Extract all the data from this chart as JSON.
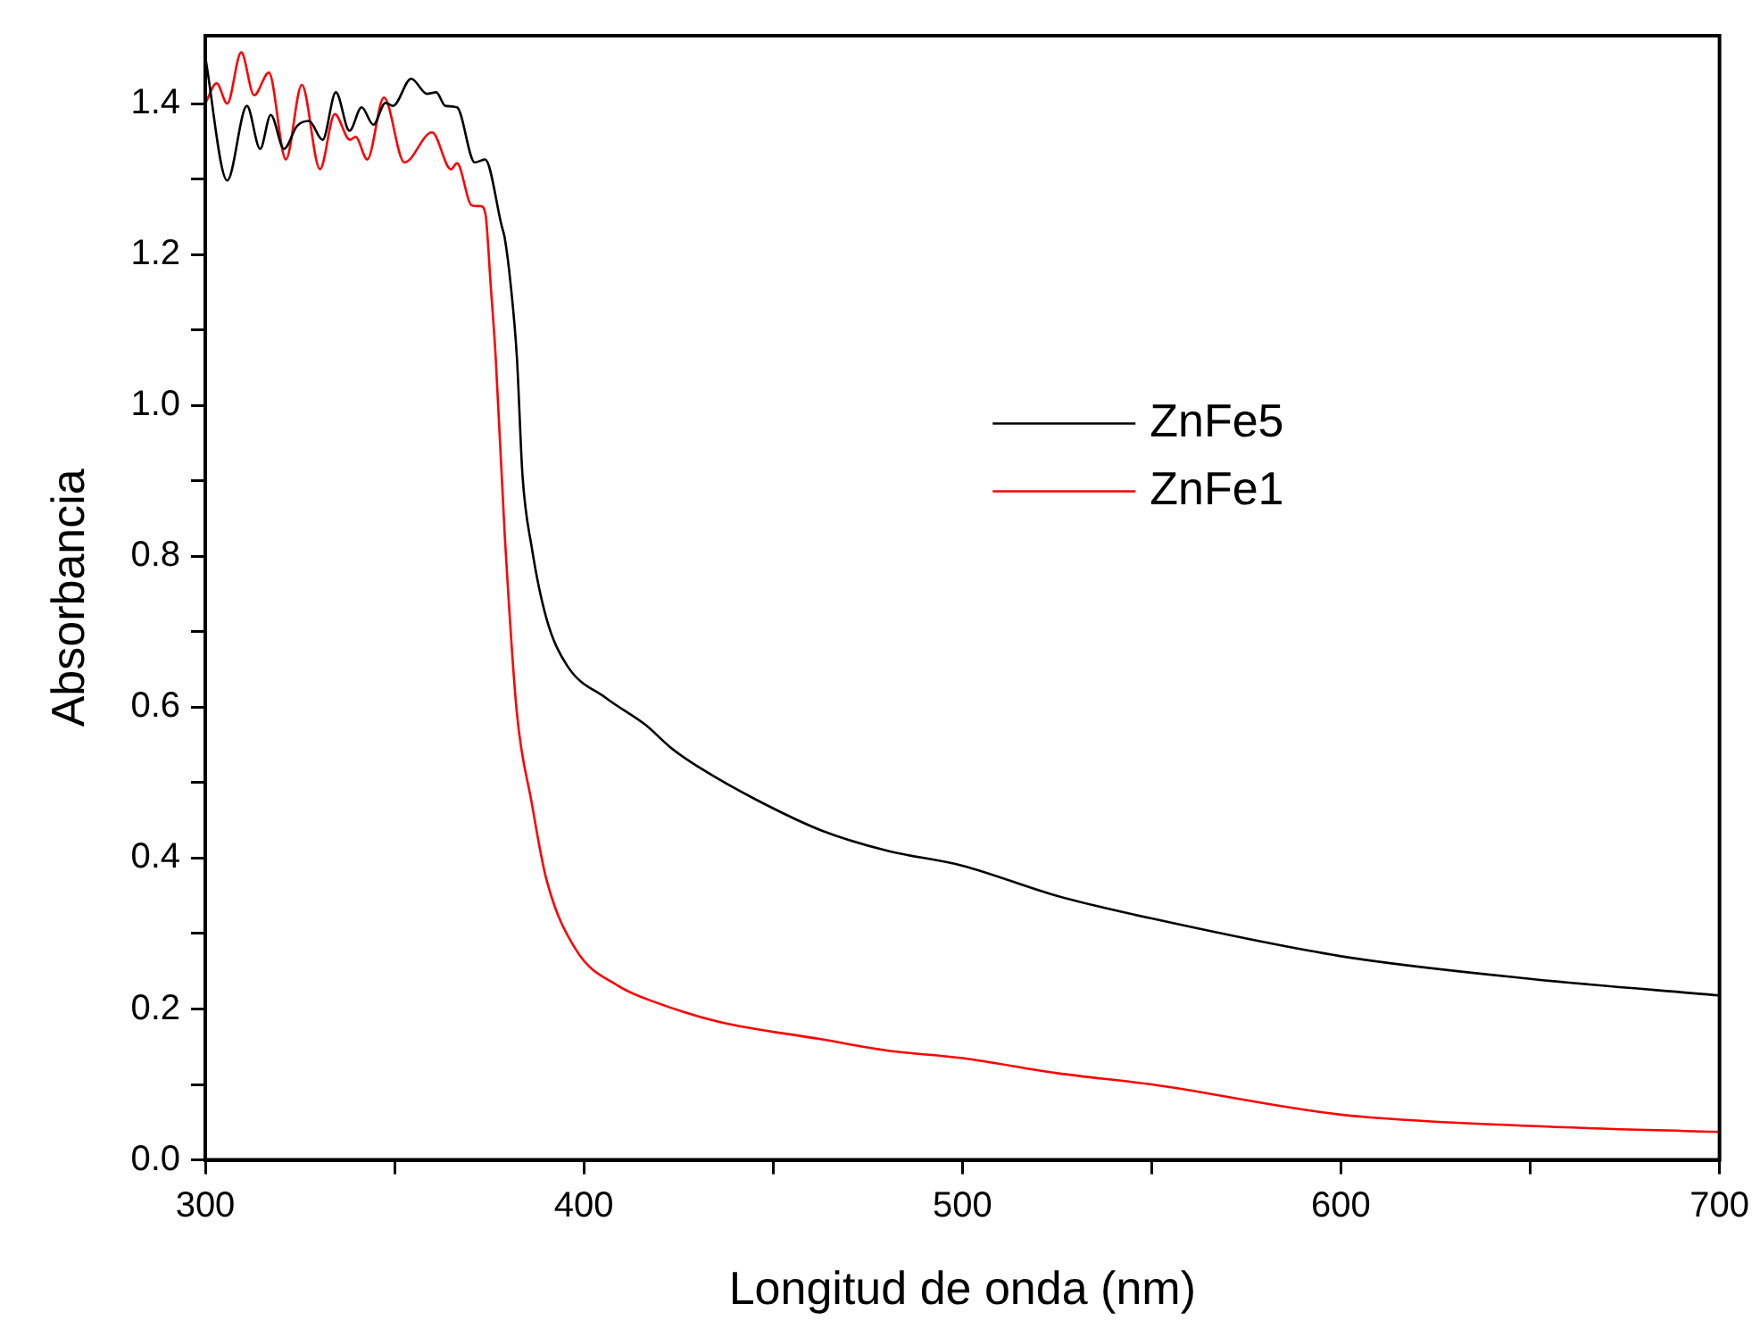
{
  "chart_data": {
    "type": "line",
    "xlabel": "Longitud de onda (nm)",
    "ylabel": "Absorbancia",
    "xlim": [
      300,
      700
    ],
    "ylim": [
      0,
      1.49
    ],
    "xticks": [
      300,
      {
        "value": 350,
        "label": null
      },
      400,
      {
        "value": 450,
        "label": null
      },
      500,
      {
        "value": 550,
        "label": null
      },
      600,
      {
        "value": 650,
        "label": null
      },
      700
    ],
    "yticks": [
      {
        "value": 0,
        "label": "0.0"
      },
      {
        "value": 0.1,
        "label": null
      },
      {
        "value": 0.2,
        "label": "0.2"
      },
      {
        "value": 0.3,
        "label": null
      },
      {
        "value": 0.4,
        "label": "0.4"
      },
      {
        "value": 0.5,
        "label": null
      },
      {
        "value": 0.6,
        "label": "0.6"
      },
      {
        "value": 0.7,
        "label": null
      },
      {
        "value": 0.8,
        "label": "0.8"
      },
      {
        "value": 0.9,
        "label": null
      },
      {
        "value": 1,
        "label": "1.0"
      },
      {
        "value": 1.1,
        "label": null
      },
      {
        "value": 1.2,
        "label": "1.2"
      },
      {
        "value": 1.3,
        "label": null
      },
      {
        "value": 1.4,
        "label": "1.4"
      }
    ],
    "grid": false,
    "legend": "right",
    "marker": "none",
    "line_style": "solid",
    "series": [
      {
        "name": "ZnFe5",
        "color": "#000000",
        "x": [
          300,
          305.8,
          311,
          314.5,
          317.3,
          320.8,
          324.2,
          327.4,
          331,
          334.5,
          338.1,
          341.3,
          344.4,
          347.6,
          349.6,
          354.4,
          358.6,
          361,
          363.4,
          366.5,
          371.2,
          373.9,
          378.3,
          379.1,
          380.7,
          382.3,
          383.8,
          386.2,
          390.1,
          395.6,
          405.9,
          416.2,
          423.3,
          431.2,
          445.3,
          462.6,
          480,
          500,
          525,
          550,
          600,
          650,
          700
        ],
        "values": [
          1.462,
          1.298,
          1.397,
          1.34,
          1.385,
          1.34,
          1.37,
          1.377,
          1.352,
          1.415,
          1.364,
          1.395,
          1.372,
          1.401,
          1.397,
          1.433,
          1.413,
          1.415,
          1.397,
          1.395,
          1.322,
          1.326,
          1.238,
          1.222,
          1.159,
          1.065,
          0.907,
          0.813,
          0.718,
          0.655,
          0.612,
          0.577,
          0.545,
          0.518,
          0.478,
          0.437,
          0.41,
          0.39,
          0.35,
          0.32,
          0.27,
          0.24,
          0.218
        ]
      },
      {
        "name": "ZnFe1",
        "color": "#ff0000",
        "x": [
          300,
          303,
          305.8,
          309.5,
          312.9,
          316.8,
          321.3,
          325.5,
          330.3,
          334.2,
          338.2,
          339.7,
          342.8,
          347.2,
          352.6,
          359.9,
          364.9,
          366.5,
          370.4,
          372.8,
          374,
          375.4,
          376.7,
          379.1,
          382.3,
          386.2,
          390.1,
          398,
          409,
          420,
          435.8,
          462.6,
          480,
          500,
          525,
          550,
          600,
          650,
          700
        ],
        "values": [
          1.4,
          1.427,
          1.4,
          1.468,
          1.411,
          1.441,
          1.326,
          1.425,
          1.313,
          1.386,
          1.352,
          1.356,
          1.326,
          1.408,
          1.322,
          1.362,
          1.313,
          1.321,
          1.265,
          1.264,
          1.254,
          1.159,
          1.065,
          0.829,
          0.593,
          0.474,
          0.372,
          0.278,
          0.231,
          0.207,
          0.183,
          0.16,
          0.145,
          0.135,
          0.115,
          0.1,
          0.06,
          0.045,
          0.037
        ]
      }
    ]
  }
}
